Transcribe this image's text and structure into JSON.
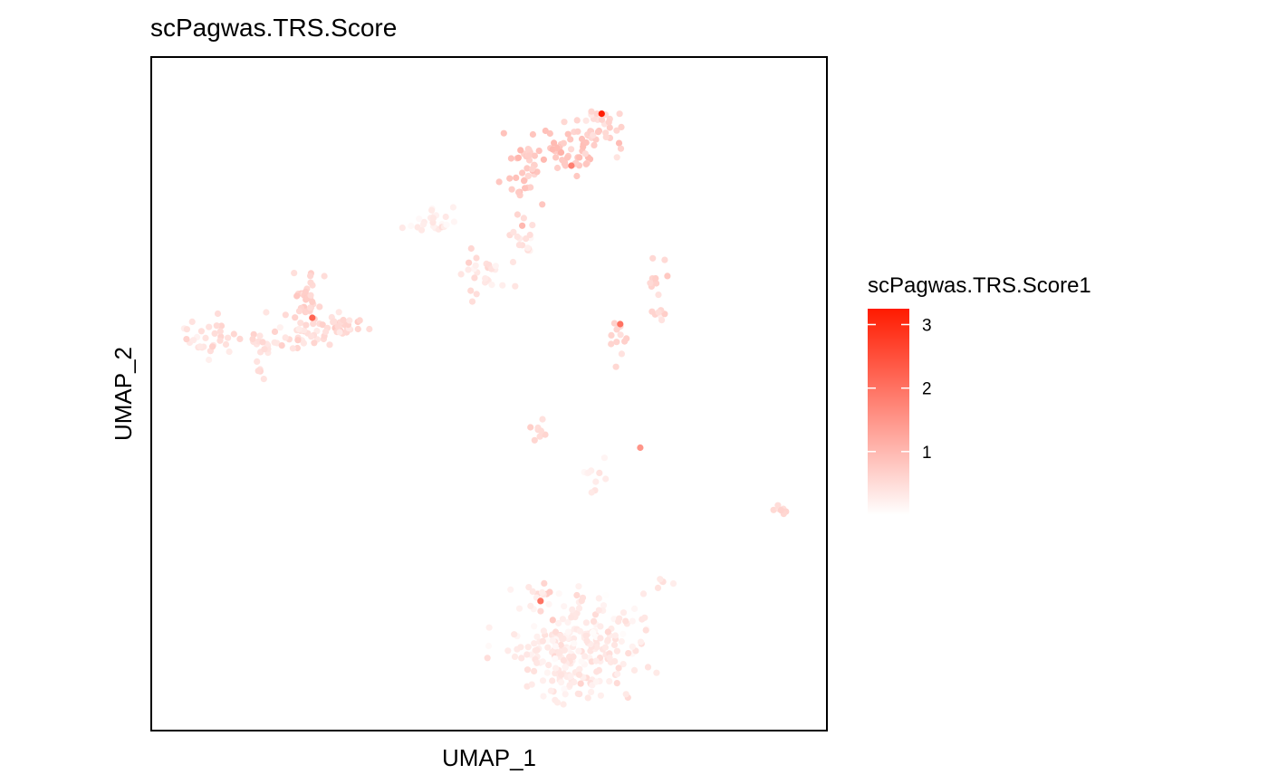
{
  "chart_data": {
    "type": "scatter",
    "title": "scPagwas.TRS.Score",
    "xlabel": "UMAP_1",
    "ylabel": "UMAP_2",
    "xlim": [
      0,
      100
    ],
    "ylim": [
      0,
      100
    ],
    "grid": false,
    "legend": {
      "title": "scPagwas.TRS.Score1",
      "position": "right",
      "ticks": [
        1,
        2,
        3
      ],
      "range": [
        0,
        3.25
      ],
      "color_low": "#ffffff",
      "color_high": "#ff1a00"
    },
    "clusters": [
      {
        "cx": 56,
        "cy": 85,
        "sx": 1.8,
        "sy": 2.6,
        "n": 38,
        "score": 0.75
      },
      {
        "cx": 62,
        "cy": 88,
        "sx": 2.5,
        "sy": 1.9,
        "n": 46,
        "score": 0.8
      },
      {
        "cx": 67.5,
        "cy": 92,
        "sx": 1.8,
        "sy": 1.6,
        "n": 34,
        "score": 0.6
      },
      {
        "cx": 40.5,
        "cy": 77,
        "sx": 1.8,
        "sy": 1.2,
        "n": 24,
        "score": 0.25
      },
      {
        "cx": 49.5,
        "cy": 69,
        "sx": 1.8,
        "sy": 1.7,
        "n": 24,
        "score": 0.4
      },
      {
        "cx": 55.3,
        "cy": 74.5,
        "sx": 1.0,
        "sy": 1.6,
        "n": 18,
        "score": 0.4
      },
      {
        "cx": 76.2,
        "cy": 68.5,
        "sx": 0.8,
        "sy": 1.4,
        "n": 10,
        "score": 0.55
      },
      {
        "cx": 76.5,
        "cy": 63,
        "sx": 1.0,
        "sy": 0.8,
        "n": 8,
        "score": 0.55
      },
      {
        "cx": 70,
        "cy": 59,
        "sx": 1.2,
        "sy": 1.4,
        "n": 12,
        "score": 0.6
      },
      {
        "cx": 21,
        "cy": 59,
        "sx": 2.3,
        "sy": 1.2,
        "n": 28,
        "score": 0.45
      },
      {
        "cx": 14.5,
        "cy": 56,
        "sx": 1.1,
        "sy": 2.8,
        "n": 22,
        "score": 0.45
      },
      {
        "cx": 6.5,
        "cy": 59,
        "sx": 2.3,
        "sy": 1.4,
        "n": 30,
        "score": 0.45
      },
      {
        "cx": 21.5,
        "cy": 65,
        "sx": 1.5,
        "sy": 2.0,
        "n": 34,
        "score": 0.6
      },
      {
        "cx": 27.5,
        "cy": 61,
        "sx": 2.2,
        "sy": 1.0,
        "n": 32,
        "score": 0.55
      },
      {
        "cx": 58,
        "cy": 44,
        "sx": 0.8,
        "sy": 1.0,
        "n": 8,
        "score": 0.55
      },
      {
        "cx": 66,
        "cy": 36,
        "sx": 1.0,
        "sy": 1.6,
        "n": 10,
        "score": 0.25
      },
      {
        "cx": 94.8,
        "cy": 32,
        "sx": 0.9,
        "sy": 0.5,
        "n": 7,
        "score": 0.6
      },
      {
        "cx": 77,
        "cy": 21,
        "sx": 1.2,
        "sy": 0.5,
        "n": 5,
        "score": 0.4
      },
      {
        "cx": 58.5,
        "cy": 18,
        "sx": 0.6,
        "sy": 0.9,
        "n": 5,
        "score": 0.6
      },
      {
        "cx": 63,
        "cy": 10,
        "sx": 5.0,
        "sy": 4.2,
        "n": 260,
        "score": 0.3
      }
    ],
    "highlight_points": [
      {
        "x": 67.5,
        "y": 94.2,
        "score": 3.2
      },
      {
        "x": 22.5,
        "y": 62.0,
        "score": 2.2
      },
      {
        "x": 70.4,
        "y": 61.0,
        "score": 2.0
      },
      {
        "x": 62.8,
        "y": 86.0,
        "score": 1.8
      },
      {
        "x": 73.5,
        "y": 41.5,
        "score": 1.5
      },
      {
        "x": 58.0,
        "y": 17.3,
        "score": 2.0
      }
    ]
  }
}
